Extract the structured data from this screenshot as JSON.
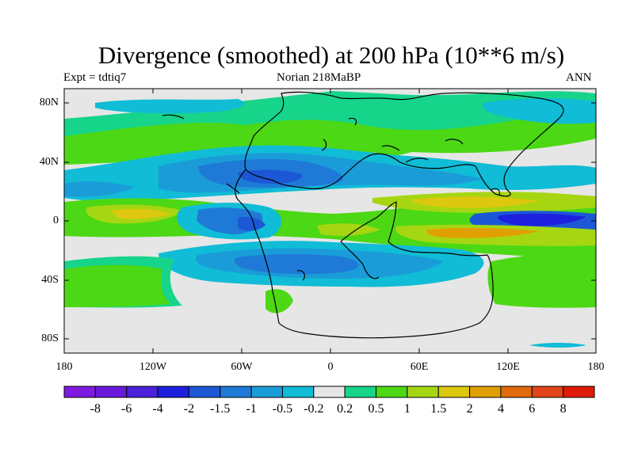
{
  "title": "Divergence (smoothed) at 200 hPa (10**6 m/s)",
  "subtitle_left": "Expt = tdtiq7",
  "subtitle_center": "Norian   218MaBP",
  "subtitle_right": "ANN",
  "lat_labels": [
    "80N",
    "40N",
    "0",
    "40S",
    "80S"
  ],
  "lon_labels": [
    "180",
    "120W",
    "60W",
    "0",
    "60E",
    "120E",
    "180"
  ],
  "colorbar": {
    "labels": [
      "-8",
      "-6",
      "-4",
      "-2",
      "-1.5",
      "-1",
      "-0.5",
      "-0.2",
      "0.2",
      "0.5",
      "1",
      "1.5",
      "2",
      "4",
      "6",
      "8"
    ],
    "colors": [
      "#7f1ae0",
      "#6a18dc",
      "#4a22d8",
      "#1d20dc",
      "#1c58d6",
      "#1e7ad6",
      "#1a9cd8",
      "#10bcd6",
      "#e6e6e6",
      "#17d48b",
      "#4cd814",
      "#a6d612",
      "#dcc80e",
      "#e0a004",
      "#e06a0c",
      "#e04418",
      "#e01a0a"
    ]
  },
  "field_colors": {
    "neutral": "#e6e6e6",
    "cyan": "#10bcd6",
    "light_blue": "#1a9cd8",
    "mid_blue": "#1e7ad6",
    "blue": "#1c58d6",
    "deep_blue": "#1d20dc",
    "teal": "#17d48b",
    "green": "#4cd814",
    "yellow_green": "#a6d612",
    "yellow": "#dcc80e",
    "orange": "#e0a004"
  }
}
